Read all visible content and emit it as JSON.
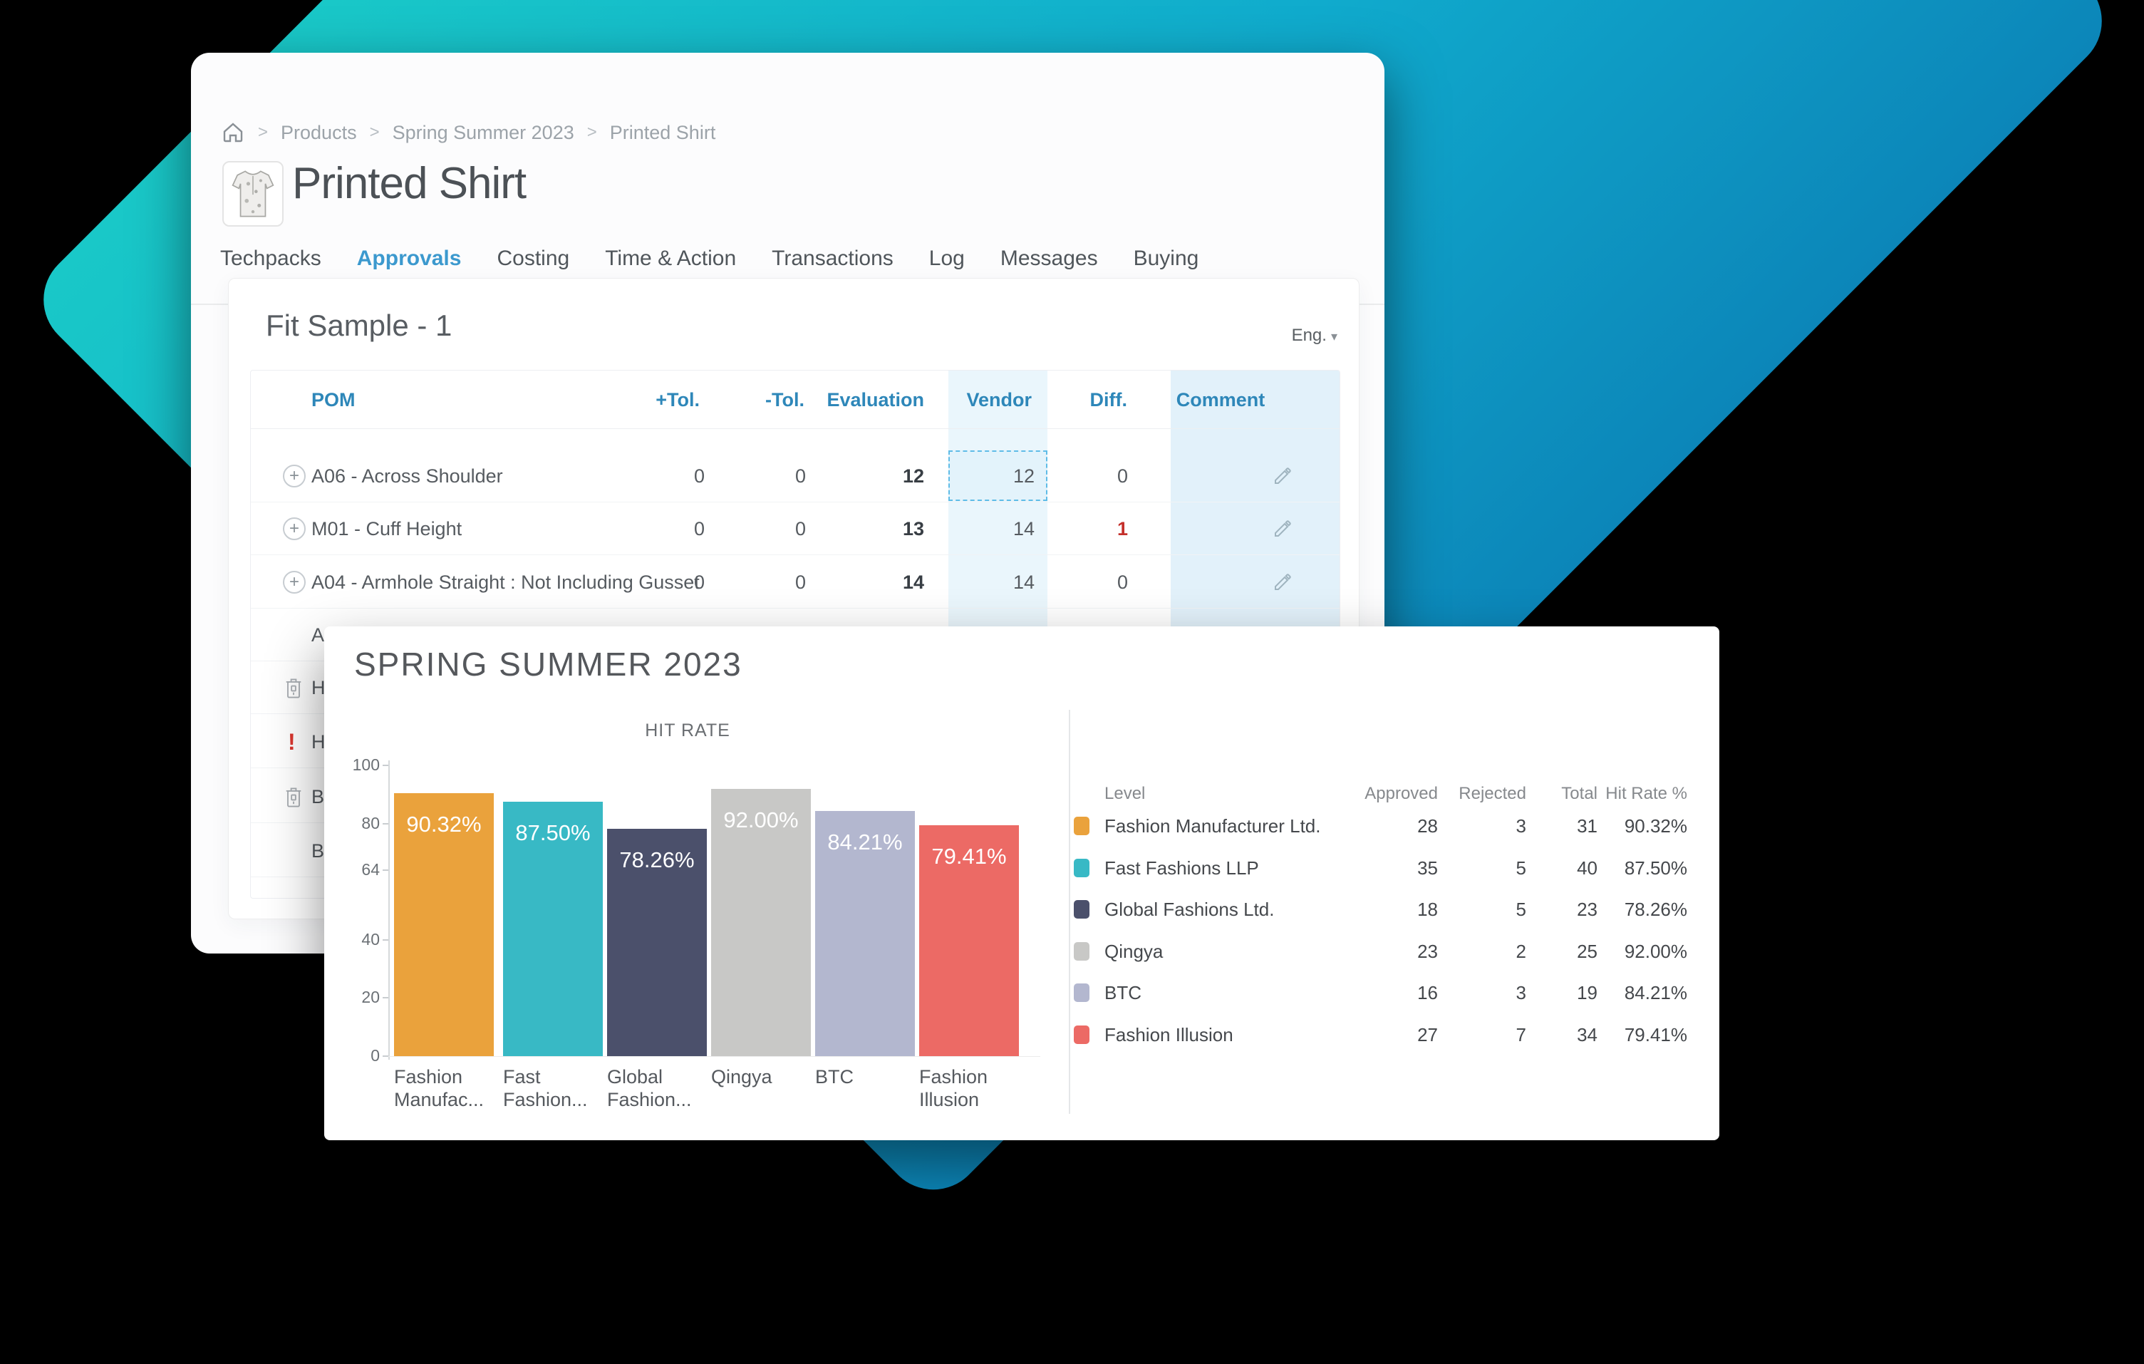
{
  "colors": {
    "accent_teal": "#19C8C8",
    "accent_blue": "#0C86B9",
    "header_blue": "#2E87B9",
    "active_tab_blue": "#3C99CE",
    "alert_red": "#C4302B",
    "vendor_col_bg": "#EAF6FC",
    "comment_col_bg": "#E2F1FA"
  },
  "breadcrumb": {
    "separator": ">",
    "items": [
      "Products",
      "Spring Summer 2023",
      "Printed Shirt"
    ]
  },
  "product": {
    "title": "Printed Shirt"
  },
  "tabs": {
    "items": [
      {
        "label": "Techpacks",
        "active": false
      },
      {
        "label": "Approvals",
        "active": true
      },
      {
        "label": "Costing",
        "active": false
      },
      {
        "label": "Time & Action",
        "active": false
      },
      {
        "label": "Transactions",
        "active": false
      },
      {
        "label": "Log",
        "active": false
      },
      {
        "label": "Messages",
        "active": false
      },
      {
        "label": "Buying",
        "active": false
      }
    ]
  },
  "fit_sample": {
    "title": "Fit Sample - 1",
    "language_selector": {
      "label": "Eng.",
      "caret": "▾"
    }
  },
  "measurement_table": {
    "columns": [
      "POM",
      "+Tol.",
      "-Tol.",
      "Evaluation",
      "Vendor",
      "Diff.",
      "Comment"
    ],
    "rows": [
      {
        "pom": "A06 - Across Shoulder",
        "plus_tol": "0",
        "minus_tol": "0",
        "evaluation": "12",
        "vendor": "12",
        "diff": "0",
        "diff_alert": false,
        "vendor_selected": true
      },
      {
        "pom": "M01 - Cuff Height",
        "plus_tol": "0",
        "minus_tol": "0",
        "evaluation": "13",
        "vendor": "14",
        "diff": "1",
        "diff_alert": true,
        "vendor_selected": false
      },
      {
        "pom": "A04 - Armhole Straight : Not Including Gusset",
        "plus_tol": "0",
        "minus_tol": "0",
        "evaluation": "14",
        "vendor": "14",
        "diff": "0",
        "diff_alert": false,
        "vendor_selected": false
      }
    ],
    "partial_rows": [
      {
        "fragment": "A",
        "icon": "none"
      },
      {
        "fragment": "H",
        "icon": "trash"
      },
      {
        "fragment": "H",
        "icon": "alert"
      },
      {
        "fragment": "B",
        "icon": "trash"
      },
      {
        "fragment": "B",
        "icon": "none"
      }
    ]
  },
  "season_card": {
    "title": "SPRING SUMMER 2023"
  },
  "chart_data": {
    "type": "bar",
    "title": "HIT RATE",
    "categories": [
      "Fashion Manufac...",
      "Fast Fashion...",
      "Global Fashion...",
      "Qingya",
      "BTC",
      "Fashion Illusion"
    ],
    "category_lines": [
      [
        "Fashion",
        "Manufac..."
      ],
      [
        "Fast",
        "Fashion..."
      ],
      [
        "Global",
        "Fashion..."
      ],
      [
        "Qingya"
      ],
      [
        "BTC"
      ],
      [
        "Fashion",
        "Illusion"
      ]
    ],
    "values": [
      90.32,
      87.5,
      78.26,
      92.0,
      84.21,
      79.41
    ],
    "bar_labels": [
      "90.32%",
      "87.50%",
      "78.26%",
      "92.00%",
      "84.21%",
      "79.41%"
    ],
    "bar_colors": [
      "#EAA23C",
      "#38B9C5",
      "#4B506B",
      "#C8C8C6",
      "#B3B7CF",
      "#EC6A65"
    ],
    "xlabel": "",
    "ylabel": "",
    "ylim": [
      0,
      100
    ],
    "yticks": [
      100,
      80,
      64,
      40,
      20,
      0
    ],
    "grid": false,
    "legend_position": "right"
  },
  "legend_table": {
    "columns": [
      "Level",
      "Approved",
      "Rejected",
      "Total",
      "Hit Rate %"
    ],
    "rows": [
      {
        "color": "#EAA23C",
        "level": "Fashion Manufacturer Ltd.",
        "approved": 28,
        "rejected": 3,
        "total": 31,
        "hit_rate": "90.32%"
      },
      {
        "color": "#38B9C5",
        "level": "Fast Fashions LLP",
        "approved": 35,
        "rejected": 5,
        "total": 40,
        "hit_rate": "87.50%"
      },
      {
        "color": "#4B506B",
        "level": "Global Fashions Ltd.",
        "approved": 18,
        "rejected": 5,
        "total": 23,
        "hit_rate": "78.26%"
      },
      {
        "color": "#C8C8C6",
        "level": "Qingya",
        "approved": 23,
        "rejected": 2,
        "total": 25,
        "hit_rate": "92.00%"
      },
      {
        "color": "#B3B7CF",
        "level": "BTC",
        "approved": 16,
        "rejected": 3,
        "total": 19,
        "hit_rate": "84.21%"
      },
      {
        "color": "#EC6A65",
        "level": "Fashion Illusion",
        "approved": 27,
        "rejected": 7,
        "total": 34,
        "hit_rate": "79.41%"
      }
    ]
  }
}
